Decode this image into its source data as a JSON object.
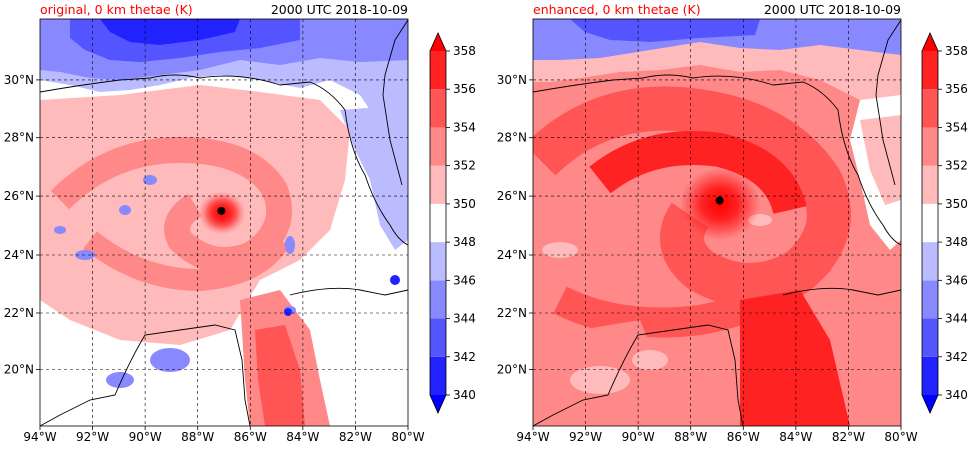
{
  "colors": {
    "levels": [
      "#0000ff",
      "#2222ff",
      "#5555ff",
      "#8888ff",
      "#bbbbff",
      "#ffffff",
      "#ffbbbb",
      "#ff8888",
      "#ff5555",
      "#ff2222",
      "#ff0000"
    ],
    "accent_title": "#ff0000",
    "coastline": "#000000"
  },
  "chart_data": [
    {
      "type": "heatmap",
      "title_left": "original, 0 km thetae (K)",
      "title_right": "2000 UTC 2018-10-09",
      "x_ticks": [
        "94°W",
        "92°W",
        "90°W",
        "88°W",
        "86°W",
        "84°W",
        "82°W",
        "80°W"
      ],
      "x_values": [
        -94,
        -92,
        -90,
        -88,
        -86,
        -84,
        -82,
        -80
      ],
      "y_ticks": [
        "20°N",
        "22°N",
        "24°N",
        "26°N",
        "28°N",
        "30°N"
      ],
      "y_values": [
        20,
        22,
        24,
        26,
        28,
        30
      ],
      "xlim": [
        -94,
        -80
      ],
      "ylim": [
        18,
        32
      ],
      "grid": true,
      "storm_center": {
        "lon": -87.1,
        "lat": 25.5
      },
      "colorbar": {
        "ticks": [
          340,
          342,
          344,
          346,
          348,
          350,
          352,
          354,
          356,
          358
        ],
        "tick_labels": [
          "340",
          "342",
          "344",
          "346",
          "348",
          "350",
          "352",
          "354",
          "356",
          "358"
        ],
        "range": [
          340,
          358
        ],
        "extend": "both"
      }
    },
    {
      "type": "heatmap",
      "title_left": "enhanced, 0 km thetae (K)",
      "title_right": "2000 UTC 2018-10-09",
      "x_ticks": [
        "94°W",
        "92°W",
        "90°W",
        "88°W",
        "86°W",
        "84°W",
        "82°W",
        "80°W"
      ],
      "x_values": [
        -94,
        -92,
        -90,
        -88,
        -86,
        -84,
        -82,
        -80
      ],
      "y_ticks": [
        "20°N",
        "22°N",
        "24°N",
        "26°N",
        "28°N",
        "30°N"
      ],
      "y_values": [
        20,
        22,
        24,
        26,
        28,
        30
      ],
      "xlim": [
        -94,
        -80
      ],
      "ylim": [
        18,
        32
      ],
      "grid": true,
      "storm_center": {
        "lon": -86.9,
        "lat": 25.85
      },
      "colorbar": {
        "ticks": [
          340,
          342,
          344,
          346,
          348,
          350,
          352,
          354,
          356,
          358
        ],
        "tick_labels": [
          "340",
          "342",
          "344",
          "346",
          "348",
          "350",
          "352",
          "354",
          "356",
          "358"
        ],
        "range": [
          340,
          358
        ],
        "extend": "both"
      }
    }
  ]
}
